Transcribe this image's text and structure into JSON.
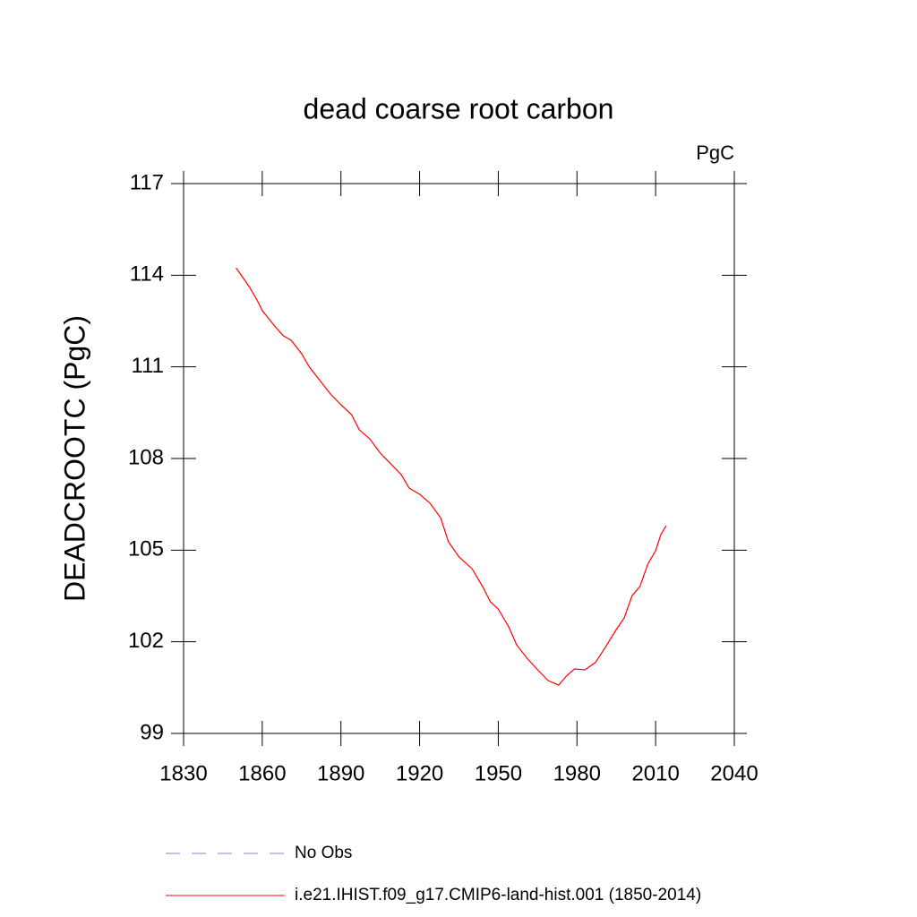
{
  "chart_data": {
    "type": "line",
    "title": "dead coarse root carbon",
    "units": "PgC",
    "y_label": "DEADCROOTC  (PgC)",
    "xlim": [
      1830,
      2040
    ],
    "xticks": [
      1830,
      1860,
      1890,
      1920,
      1950,
      1980,
      2010,
      2040
    ],
    "ylim": [
      99,
      117
    ],
    "yticks": [
      99,
      102,
      105,
      108,
      111,
      114,
      117
    ],
    "grid": false,
    "x": [
      1850,
      1855,
      1858,
      1860,
      1865,
      1868,
      1871,
      1875,
      1878,
      1882,
      1886,
      1890,
      1894,
      1897,
      1901,
      1905,
      1909,
      1913,
      1916,
      1920,
      1924,
      1928,
      1931,
      1935,
      1940,
      1944,
      1947,
      1950,
      1954,
      1957,
      1961,
      1965,
      1969,
      1973,
      1976,
      1979,
      1983,
      1987,
      1991,
      1995,
      1998,
      2001,
      2004,
      2007,
      2010,
      2012,
      2014
    ],
    "series": [
      {
        "name": "i.e21.IHIST.f09_g17.CMIP6-land-hist.001 (1850-2014)",
        "color": "#ff0000",
        "values": [
          114.24,
          113.63,
          113.19,
          112.84,
          112.31,
          112.02,
          111.87,
          111.43,
          110.99,
          110.55,
          110.11,
          109.76,
          109.44,
          108.94,
          108.64,
          108.18,
          107.82,
          107.47,
          107.03,
          106.83,
          106.53,
          106.06,
          105.27,
          104.78,
          104.39,
          103.81,
          103.31,
          103.07,
          102.49,
          101.9,
          101.46,
          101.08,
          100.73,
          100.58,
          100.88,
          101.11,
          101.08,
          101.32,
          101.84,
          102.4,
          102.78,
          103.51,
          103.81,
          104.54,
          104.98,
          105.51,
          105.8
        ]
      }
    ],
    "reference": {
      "name": "No Obs",
      "color": "#8080d0",
      "dashed": true
    }
  }
}
